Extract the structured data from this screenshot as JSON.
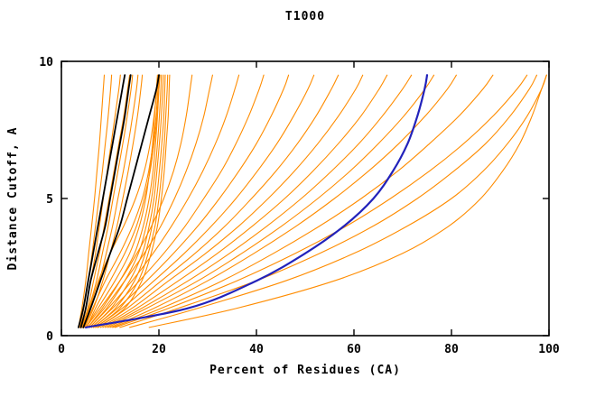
{
  "chart_data": {
    "type": "line",
    "title": "T1000",
    "xlabel": "Percent of Residues (CA)",
    "ylabel": "Distance Cutoff, A",
    "xlim": [
      0,
      100
    ],
    "ylim": [
      0,
      10
    ],
    "xticks": [
      0,
      20,
      40,
      60,
      80,
      100
    ],
    "yticks": [
      0,
      5,
      10
    ],
    "grid": false,
    "legend": "none",
    "colors": {
      "prediction": "#FF8C00",
      "reference": "#000000",
      "highlight": "#2222BB",
      "frame": "#000000",
      "background": "#FFFFFF"
    },
    "y_samples": [
      0.3,
      1,
      2,
      3,
      4,
      5,
      6,
      7,
      8,
      9,
      9.5
    ],
    "series": [
      {
        "name": "prediction-curve",
        "color": "#FF8C00",
        "width": 1.1,
        "x": [
          3.5,
          4.2,
          5,
          5.6,
          6.2,
          6.8,
          7.3,
          7.8,
          8.2,
          8.6,
          8.8
        ]
      },
      {
        "name": "prediction-curve",
        "color": "#FF8C00",
        "width": 1.1,
        "x": [
          3.8,
          4.6,
          5.5,
          6.3,
          7,
          7.7,
          8.4,
          9,
          9.6,
          10.1,
          10.3
        ]
      },
      {
        "name": "prediction-curve",
        "color": "#FF8C00",
        "width": 1.1,
        "x": [
          4,
          5,
          6,
          7,
          7.8,
          8.6,
          9.4,
          10.2,
          11,
          11.8,
          12.1
        ]
      },
      {
        "name": "prediction-curve",
        "color": "#FF8C00",
        "width": 1.1,
        "x": [
          4.2,
          5.4,
          6.6,
          7.8,
          8.8,
          9.8,
          10.8,
          11.8,
          12.8,
          13.6,
          14
        ]
      },
      {
        "name": "prediction-curve",
        "color": "#FF8C00",
        "width": 1.1,
        "x": [
          4,
          5.6,
          7.2,
          8.4,
          9.6,
          10.6,
          11.6,
          12.6,
          13.5,
          14.3,
          14.6
        ]
      },
      {
        "name": "prediction-curve",
        "color": "#FF8C00",
        "width": 1.1,
        "x": [
          4.4,
          6,
          7.8,
          9.2,
          10.5,
          11.6,
          12.7,
          13.7,
          14.6,
          15.4,
          15.7
        ]
      },
      {
        "name": "prediction-curve",
        "color": "#FF8C00",
        "width": 1.1,
        "x": [
          4.8,
          6.6,
          8.5,
          10,
          11.4,
          12.6,
          13.7,
          14.7,
          15.6,
          16.3,
          16.6
        ]
      },
      {
        "name": "prediction-curve",
        "color": "#FF8C00",
        "width": 1.1,
        "x": [
          5,
          7.5,
          11,
          14,
          16,
          17.3,
          18.1,
          18.7,
          19.1,
          19.5,
          19.7
        ]
      },
      {
        "name": "prediction-curve",
        "color": "#FF8C00",
        "width": 1.1,
        "x": [
          5.4,
          8.4,
          12,
          15,
          16.8,
          18,
          18.8,
          19.3,
          19.7,
          20,
          20.1
        ]
      },
      {
        "name": "prediction-curve",
        "color": "#FF8C00",
        "width": 1.1,
        "x": [
          5.8,
          9.3,
          13,
          15.8,
          17.4,
          18.5,
          19.2,
          19.7,
          20.1,
          20.4,
          20.5
        ]
      },
      {
        "name": "prediction-curve",
        "color": "#FF8C00",
        "width": 1.1,
        "x": [
          6.2,
          10.2,
          14,
          16.6,
          18,
          19,
          19.6,
          20.1,
          20.5,
          20.8,
          20.9
        ]
      },
      {
        "name": "prediction-curve",
        "color": "#FF8C00",
        "width": 1.1,
        "x": [
          6.6,
          11.1,
          15,
          17.2,
          18.6,
          19.5,
          20.1,
          20.6,
          21,
          21.2,
          21.3
        ]
      },
      {
        "name": "prediction-curve",
        "color": "#FF8C00",
        "width": 1.1,
        "x": [
          7,
          12,
          15.8,
          17.8,
          19.2,
          20,
          20.6,
          21.1,
          21.4,
          21.7,
          21.8
        ]
      },
      {
        "name": "prediction-curve",
        "color": "#FF8C00",
        "width": 1.1,
        "x": [
          7.4,
          13,
          16.5,
          18.4,
          19.7,
          20.5,
          21.1,
          21.5,
          21.9,
          22.1,
          22.2
        ]
      },
      {
        "name": "prediction-curve",
        "color": "#FF8C00",
        "width": 1.1,
        "x": [
          4.6,
          6.4,
          9,
          12,
          14.6,
          16.6,
          17.9,
          18.8,
          19.4,
          19.8,
          20
        ]
      },
      {
        "name": "prediction-curve",
        "color": "#FF8C00",
        "width": 1.1,
        "x": [
          4.3,
          5.8,
          7.6,
          10,
          12.8,
          15.2,
          17,
          18.2,
          19,
          19.6,
          19.9
        ]
      },
      {
        "name": "prediction-curve",
        "color": "#FF8C00",
        "width": 1.1,
        "x": [
          5.2,
          7,
          10,
          13,
          15.4,
          17,
          18.2,
          19,
          19.6,
          20,
          20.2
        ]
      },
      {
        "name": "prediction-curve",
        "color": "#FF8C00",
        "width": 1.1,
        "x": [
          5,
          8,
          12,
          15.5,
          18.5,
          21,
          23,
          24.5,
          25.6,
          26.4,
          26.8
        ]
      },
      {
        "name": "prediction-curve",
        "color": "#FF8C00",
        "width": 1.1,
        "x": [
          5.4,
          8.8,
          13,
          17,
          20.4,
          23.2,
          25.6,
          27.6,
          29.2,
          30.4,
          31
        ]
      },
      {
        "name": "prediction-curve",
        "color": "#FF8C00",
        "width": 1.1,
        "x": [
          5.8,
          9.6,
          14.5,
          18.8,
          22.6,
          26,
          29,
          31.6,
          33.8,
          35.6,
          36.4
        ]
      },
      {
        "name": "prediction-curve",
        "color": "#FF8C00",
        "width": 1.1,
        "x": [
          6.2,
          10.5,
          16,
          21,
          25.4,
          29.2,
          32.8,
          35.8,
          38.4,
          40.6,
          41.5
        ]
      },
      {
        "name": "prediction-curve",
        "color": "#FF8C00",
        "width": 1.1,
        "x": [
          6.6,
          11.5,
          17.5,
          23,
          28,
          32.4,
          36.4,
          40,
          43,
          45.6,
          46.6
        ]
      },
      {
        "name": "prediction-curve",
        "color": "#FF8C00",
        "width": 1.1,
        "x": [
          7,
          12.5,
          19,
          25.2,
          30.8,
          35.8,
          40.2,
          44.2,
          47.6,
          50.6,
          51.8
        ]
      },
      {
        "name": "prediction-curve",
        "color": "#FF8C00",
        "width": 1.1,
        "x": [
          7.5,
          13.5,
          20.5,
          27.4,
          33.6,
          39,
          44,
          48.4,
          52.2,
          55.4,
          56.8
        ]
      },
      {
        "name": "prediction-curve",
        "color": "#FF8C00",
        "width": 1.1,
        "x": [
          8,
          14.5,
          22,
          29.6,
          36.4,
          42.4,
          47.8,
          52.6,
          56.8,
          60.4,
          61.8
        ]
      },
      {
        "name": "prediction-curve",
        "color": "#FF8C00",
        "width": 1.1,
        "x": [
          8.5,
          15.5,
          24,
          32,
          39.2,
          45.8,
          51.6,
          56.8,
          61.4,
          65.2,
          66.8
        ]
      },
      {
        "name": "prediction-curve",
        "color": "#FF8C00",
        "width": 1.1,
        "x": [
          9,
          16.5,
          26,
          34.5,
          42.2,
          49.2,
          55.4,
          61,
          65.8,
          70,
          71.8
        ]
      },
      {
        "name": "prediction-curve",
        "color": "#FF8C00",
        "width": 1.1,
        "x": [
          9.5,
          17.5,
          28,
          37,
          45.2,
          52.6,
          59.2,
          65,
          70.2,
          74.6,
          76.4
        ]
      },
      {
        "name": "prediction-curve",
        "color": "#FF8C00",
        "width": 1.1,
        "x": [
          10,
          19,
          30,
          39.5,
          48.2,
          56,
          63,
          69.2,
          74.6,
          79.2,
          81
        ]
      },
      {
        "name": "prediction-curve",
        "color": "#FF8C00",
        "width": 1.1,
        "x": [
          10.5,
          20.5,
          33,
          43.5,
          53,
          61.5,
          69,
          75.5,
          81.5,
          86.5,
          88.5
        ]
      },
      {
        "name": "prediction-curve",
        "color": "#FF8C00",
        "width": 1.1,
        "x": [
          11,
          22,
          36,
          48,
          58.5,
          67.5,
          75.5,
          82.5,
          88.5,
          93.5,
          95.5
        ]
      },
      {
        "name": "prediction-curve",
        "color": "#FF8C00",
        "width": 1.1,
        "x": [
          12,
          24,
          40,
          53,
          64,
          73,
          80.5,
          87,
          92,
          96,
          97.5
        ]
      },
      {
        "name": "prediction-curve",
        "color": "#FF8C00",
        "width": 1.1,
        "x": [
          14,
          28,
          46,
          60,
          71,
          80,
          86.5,
          91.5,
          95.5,
          98.5,
          99.5
        ]
      },
      {
        "name": "prediction-curve",
        "color": "#FF8C00",
        "width": 1.1,
        "x": [
          18,
          36,
          56,
          70,
          79.5,
          86,
          90.5,
          94,
          96.5,
          98.5,
          99.5
        ]
      },
      {
        "name": "reference-curve",
        "color": "#000000",
        "width": 1.8,
        "x": [
          3.5,
          4.5,
          5.5,
          6.5,
          7.5,
          8.5,
          9.5,
          10.5,
          11.5,
          12.5,
          13
        ]
      },
      {
        "name": "reference-curve",
        "color": "#000000",
        "width": 1.8,
        "x": [
          4,
          5,
          6,
          7.5,
          9,
          10,
          11,
          12,
          13,
          13.8,
          14.2
        ]
      },
      {
        "name": "reference-curve",
        "color": "#000000",
        "width": 1.8,
        "x": [
          4.5,
          6,
          8,
          10,
          12,
          13.5,
          15,
          16.5,
          18,
          19.5,
          20
        ]
      },
      {
        "name": "highlight-curve",
        "color": "#2222BB",
        "width": 2.2,
        "x": [
          5,
          26,
          40,
          50,
          58,
          64,
          68,
          71,
          73,
          74.5,
          75
        ]
      }
    ]
  }
}
